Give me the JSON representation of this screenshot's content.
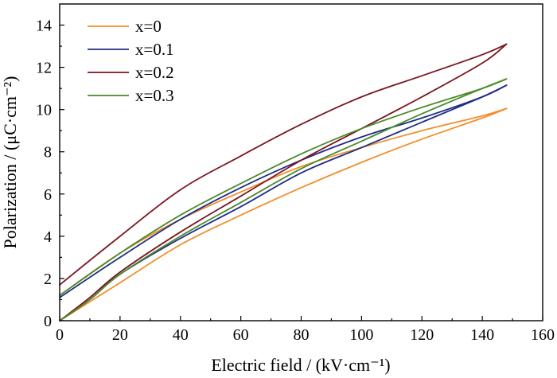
{
  "chart_data": {
    "type": "line",
    "xlabel": "Electric field / (kV·cm⁻¹)",
    "ylabel": "Polarization / (μC·cm⁻²)",
    "xlim": [
      0,
      160
    ],
    "ylim": [
      0,
      15
    ],
    "xticks": [
      "0",
      "20",
      "40",
      "60",
      "80",
      "100",
      "120",
      "140",
      "160"
    ],
    "yticks": [
      "0",
      "2",
      "4",
      "6",
      "8",
      "10",
      "12",
      "14"
    ],
    "legend_position": "top-left",
    "series": [
      {
        "name": "x=0",
        "color": "#f28e2b",
        "upper": [
          [
            0,
            1.2
          ],
          [
            20,
            3.2
          ],
          [
            40,
            4.8
          ],
          [
            60,
            6.1
          ],
          [
            80,
            7.3
          ],
          [
            100,
            8.2
          ],
          [
            120,
            9.0
          ],
          [
            140,
            9.7
          ],
          [
            148,
            10.05
          ]
        ],
        "lower": [
          [
            0,
            0
          ],
          [
            10,
            0.9
          ],
          [
            20,
            1.8
          ],
          [
            40,
            3.6
          ],
          [
            60,
            5.0
          ],
          [
            80,
            6.3
          ],
          [
            100,
            7.5
          ],
          [
            120,
            8.6
          ],
          [
            140,
            9.6
          ],
          [
            148,
            10.05
          ]
        ]
      },
      {
        "name": "x=0.1",
        "color": "#1f2d86",
        "upper": [
          [
            0,
            1.1
          ],
          [
            20,
            3.0
          ],
          [
            40,
            4.8
          ],
          [
            60,
            6.3
          ],
          [
            80,
            7.6
          ],
          [
            100,
            8.7
          ],
          [
            120,
            9.6
          ],
          [
            140,
            10.6
          ],
          [
            148,
            11.15
          ]
        ],
        "lower": [
          [
            0,
            0
          ],
          [
            10,
            1.0
          ],
          [
            20,
            2.2
          ],
          [
            40,
            3.9
          ],
          [
            60,
            5.4
          ],
          [
            80,
            7.0
          ],
          [
            100,
            8.2
          ],
          [
            120,
            9.4
          ],
          [
            140,
            10.6
          ],
          [
            148,
            11.15
          ]
        ]
      },
      {
        "name": "x=0.2",
        "color": "#7a1620",
        "upper": [
          [
            0,
            1.7
          ],
          [
            20,
            4.0
          ],
          [
            40,
            6.2
          ],
          [
            60,
            7.8
          ],
          [
            80,
            9.3
          ],
          [
            100,
            10.6
          ],
          [
            120,
            11.6
          ],
          [
            140,
            12.6
          ],
          [
            148,
            13.1
          ]
        ],
        "lower": [
          [
            0,
            0
          ],
          [
            10,
            1.1
          ],
          [
            20,
            2.3
          ],
          [
            40,
            4.2
          ],
          [
            60,
            5.9
          ],
          [
            80,
            7.6
          ],
          [
            100,
            9.1
          ],
          [
            120,
            10.6
          ],
          [
            140,
            12.2
          ],
          [
            148,
            13.1
          ]
        ]
      },
      {
        "name": "x=0.3",
        "color": "#4a8a2c",
        "upper": [
          [
            0,
            1.2
          ],
          [
            20,
            3.2
          ],
          [
            40,
            5.0
          ],
          [
            60,
            6.5
          ],
          [
            80,
            7.9
          ],
          [
            100,
            9.1
          ],
          [
            120,
            10.1
          ],
          [
            140,
            11.0
          ],
          [
            148,
            11.45
          ]
        ],
        "lower": [
          [
            0,
            0
          ],
          [
            10,
            1.0
          ],
          [
            20,
            2.2
          ],
          [
            40,
            4.0
          ],
          [
            60,
            5.6
          ],
          [
            80,
            7.2
          ],
          [
            100,
            8.5
          ],
          [
            120,
            9.8
          ],
          [
            140,
            11.0
          ],
          [
            148,
            11.45
          ]
        ]
      }
    ]
  }
}
